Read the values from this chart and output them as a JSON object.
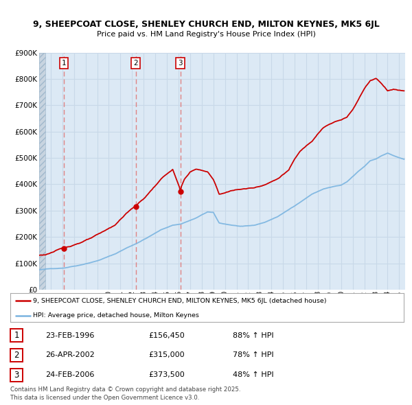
{
  "title": "9, SHEEPCOAT CLOSE, SHENLEY CHURCH END, MILTON KEYNES, MK5 6JL",
  "subtitle": "Price paid vs. HM Land Registry's House Price Index (HPI)",
  "ylim": [
    0,
    900000
  ],
  "yticks": [
    0,
    100000,
    200000,
    300000,
    400000,
    500000,
    600000,
    700000,
    800000,
    900000
  ],
  "ytick_labels": [
    "£0",
    "£100K",
    "£200K",
    "£300K",
    "£400K",
    "£500K",
    "£600K",
    "£700K",
    "£800K",
    "£900K"
  ],
  "xmin": 1994,
  "xmax": 2025.5,
  "bg_color": "#dce9f5",
  "hatch_color": "#c8d8e8",
  "grid_color": "#c8d8e8",
  "sale_color": "#cc0000",
  "hpi_color": "#7ab4e0",
  "vline_color": "#e07070",
  "sale_dates": [
    1996.14,
    2002.32,
    2006.15
  ],
  "sale_prices": [
    156450,
    315000,
    373500
  ],
  "sale_labels": [
    "1",
    "2",
    "3"
  ],
  "sale_pct_hpi": [
    "88% ↑ HPI",
    "78% ↑ HPI",
    "48% ↑ HPI"
  ],
  "sale_date_strs": [
    "23-FEB-1996",
    "26-APR-2002",
    "24-FEB-2006"
  ],
  "sale_prices_display": [
    "£156,450",
    "£315,000",
    "£373,500"
  ],
  "legend_red_label": "9, SHEEPCOAT CLOSE, SHENLEY CHURCH END, MILTON KEYNES, MK5 6JL (detached house)",
  "legend_blue_label": "HPI: Average price, detached house, Milton Keynes",
  "footer_line1": "Contains HM Land Registry data © Crown copyright and database right 2025.",
  "footer_line2": "This data is licensed under the Open Government Licence v3.0."
}
